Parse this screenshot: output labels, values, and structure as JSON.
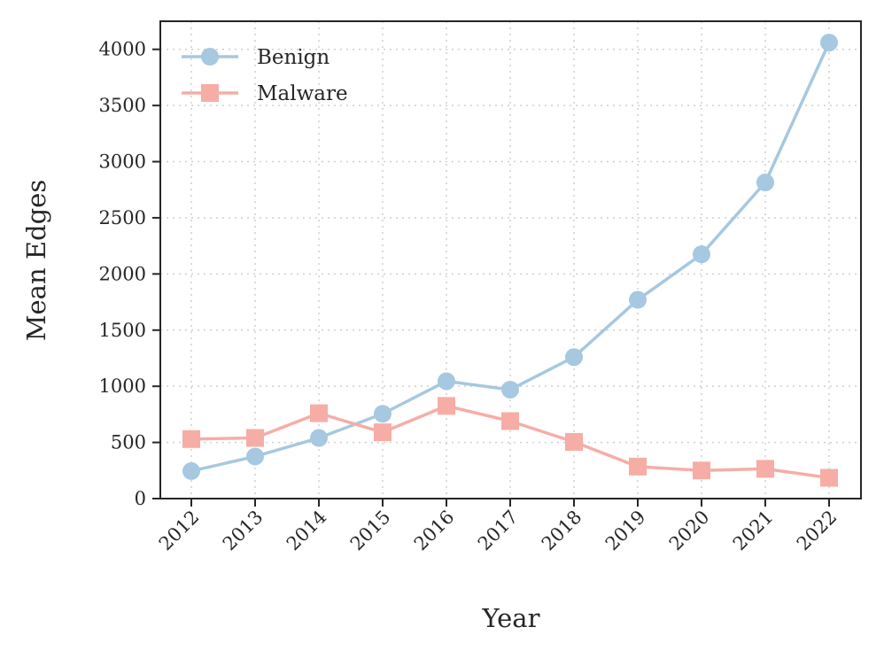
{
  "chart_data": {
    "type": "line",
    "title": "",
    "xlabel": "Year",
    "ylabel": "Mean Edges",
    "categories": [
      "2012",
      "2013",
      "2014",
      "2015",
      "2016",
      "2017",
      "2018",
      "2019",
      "2020",
      "2021",
      "2022"
    ],
    "yticks": [
      "0",
      "500",
      "1000",
      "1500",
      "2000",
      "2500",
      "3000",
      "3500",
      "4000"
    ],
    "ylim": [
      0,
      4250
    ],
    "grid": true,
    "legend_position": "top-left",
    "series": [
      {
        "name": "Benign",
        "marker": "circle",
        "color": "#a6c8e0",
        "values": [
          245,
          375,
          540,
          755,
          1045,
          970,
          1260,
          1770,
          2175,
          2815,
          4060
        ]
      },
      {
        "name": "Malware",
        "marker": "square",
        "color": "#f6ada6",
        "values": [
          530,
          540,
          760,
          590,
          825,
          690,
          505,
          285,
          250,
          265,
          185
        ]
      }
    ]
  }
}
